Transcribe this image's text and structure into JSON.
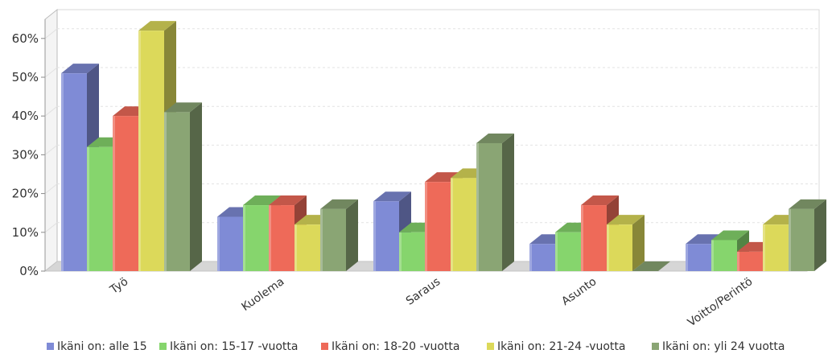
{
  "chart_data": {
    "type": "bar",
    "style": "3d-grouped",
    "categories": [
      "Työ",
      "Kuolema",
      "Saraus",
      "Asunto",
      "Voitto/Perintö"
    ],
    "series": [
      {
        "name": "Ikäni on: alle 15",
        "color": "#7f8bd6",
        "values": [
          51,
          14,
          18,
          7,
          7
        ]
      },
      {
        "name": "Ikäni on: 15-17 -vuotta",
        "color": "#86d56d",
        "values": [
          32,
          17,
          10,
          10,
          8
        ]
      },
      {
        "name": "Ikäni on: 18-20 -vuotta",
        "color": "#ee6a59",
        "values": [
          40,
          17,
          23,
          17,
          5
        ]
      },
      {
        "name": "Ikäni on: 21-24 -vuotta",
        "color": "#dcd95a",
        "values": [
          62,
          12,
          24,
          12,
          12
        ]
      },
      {
        "name": "Ikäni on: yli 24 vuotta",
        "color": "#8aa574",
        "values": [
          41,
          16,
          33,
          0,
          16
        ]
      }
    ],
    "yticks": [
      "0%",
      "10%",
      "20%",
      "30%",
      "40%",
      "50%",
      "60%"
    ],
    "ylim": [
      0,
      65
    ],
    "grid": true,
    "legend": "bottom",
    "title": "",
    "xlabel": "",
    "ylabel": ""
  }
}
